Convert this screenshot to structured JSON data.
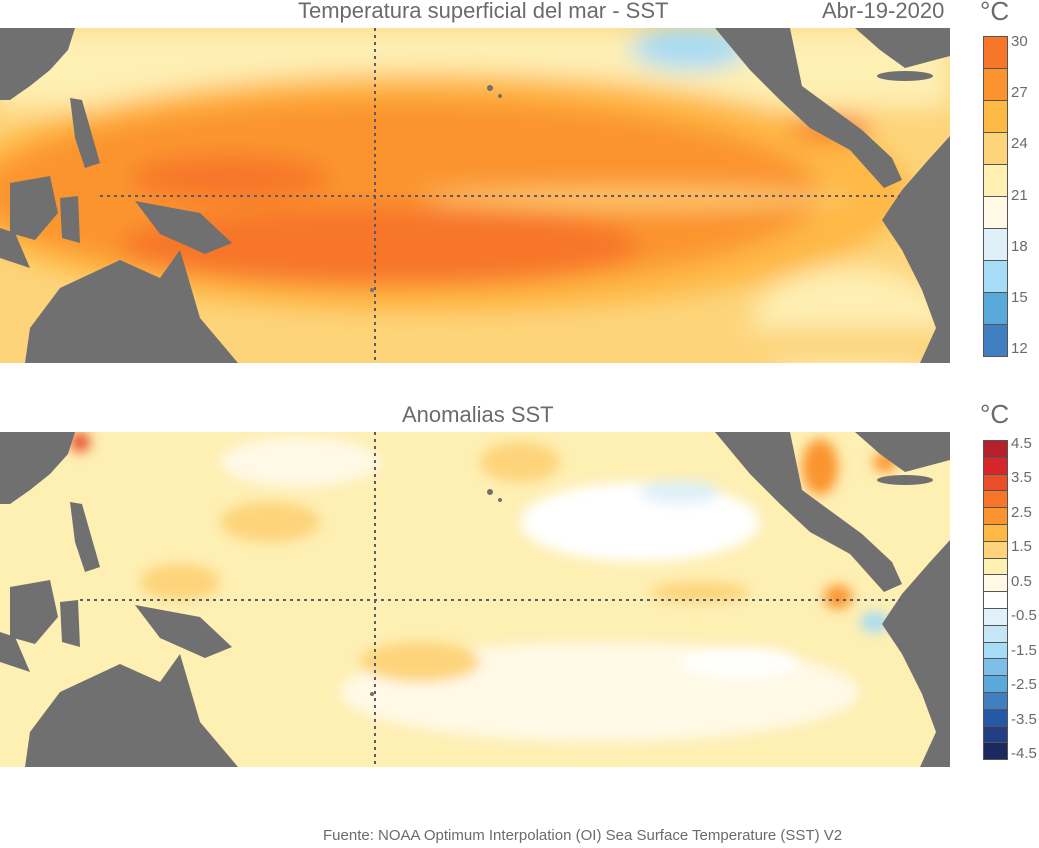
{
  "top": {
    "title": "Temperatura superficial del mar - SST",
    "date": "Abr-19-2020",
    "unit": "°C",
    "colorbar": {
      "labels": [
        "30",
        "27",
        "24",
        "21",
        "18",
        "15",
        "12"
      ],
      "colors": [
        "#f7762a",
        "#fb942e",
        "#feb844",
        "#fdd47a",
        "#feefb3",
        "#fff9e6",
        "#dff0f8",
        "#a6dcf5",
        "#5aa9db",
        "#3f7fc2"
      ]
    }
  },
  "bottom": {
    "title": "Anomalias SST",
    "unit": "°C",
    "colorbar": {
      "labels": [
        "4.5",
        "3.5",
        "2.5",
        "1.5",
        "0.5",
        "-0.5",
        "-1.5",
        "-2.5",
        "-3.5",
        "-4.5"
      ],
      "colors": [
        "#b5202a",
        "#d7262b",
        "#e94e2b",
        "#f7762a",
        "#fb942e",
        "#feb844",
        "#fdd47a",
        "#feefb3",
        "#fff9e6",
        "#ffffff",
        "#e0f1f9",
        "#c5e6f7",
        "#a6dcf5",
        "#7cc0ea",
        "#5aa9db",
        "#3f7fc2",
        "#2559a8",
        "#223e85",
        "#1b2a5e"
      ]
    }
  },
  "colors": {
    "land": "#707070",
    "gridline": "#5a5a6e"
  },
  "footer": "Fuente: NOAA Optimum Interpolation (OI) Sea Surface Temperature (SST) V2"
}
